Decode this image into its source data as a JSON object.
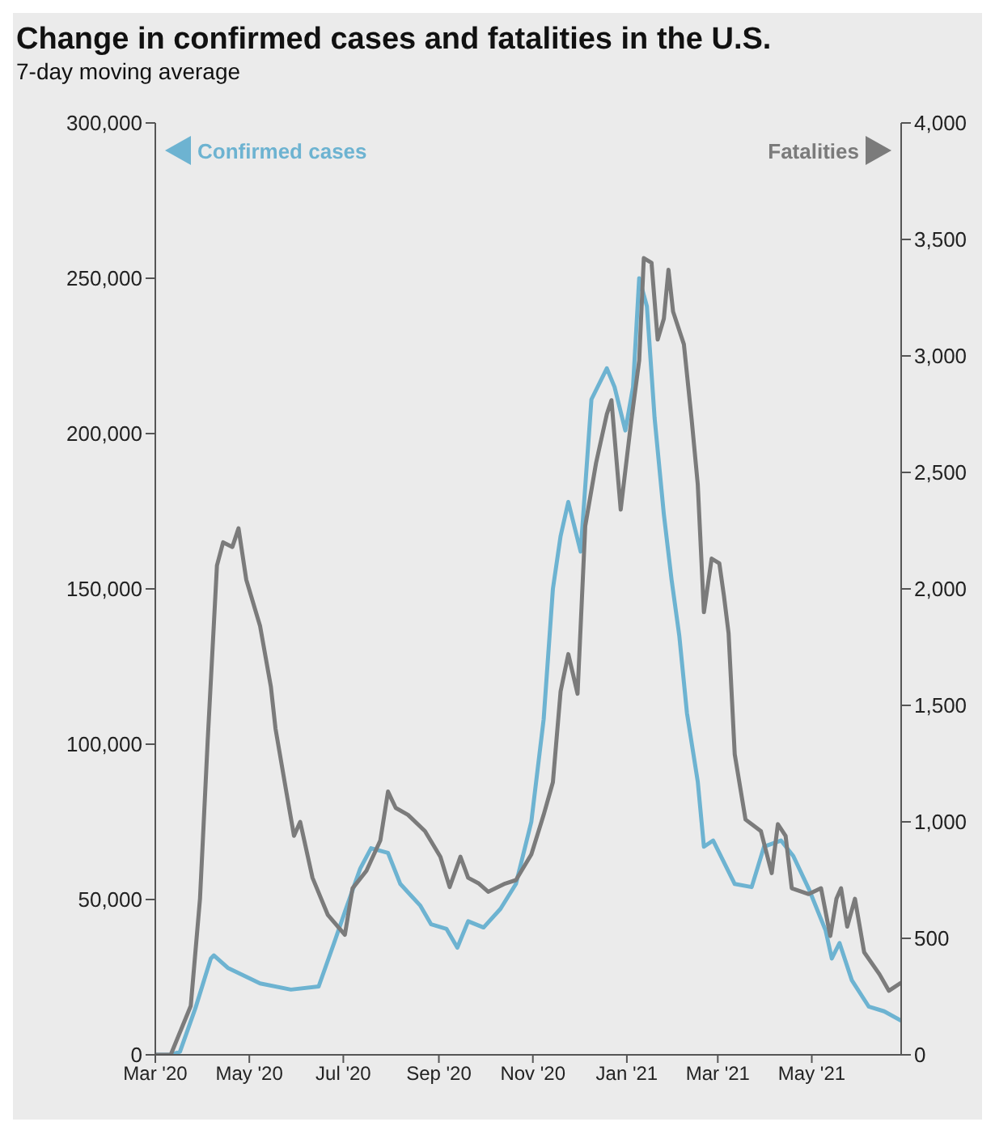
{
  "chart_data": {
    "type": "line",
    "title": "Change in confirmed cases and fatalities in the U.S.",
    "subtitle": "7-day moving average",
    "xlim": [
      "2020-03-01",
      "2021-06-28"
    ],
    "xticks": [
      {
        "value": "2020-03-01",
        "label": "Mar '20"
      },
      {
        "value": "2020-05-01",
        "label": "May '20"
      },
      {
        "value": "2020-07-01",
        "label": "Jul '20"
      },
      {
        "value": "2020-09-01",
        "label": "Sep '20"
      },
      {
        "value": "2020-11-01",
        "label": "Nov '20"
      },
      {
        "value": "2021-01-01",
        "label": "Jan '21"
      },
      {
        "value": "2021-03-01",
        "label": "Mar '21"
      },
      {
        "value": "2021-05-01",
        "label": "May '21"
      }
    ],
    "ylim": [
      0,
      300000
    ],
    "yticks": [
      0,
      {
        "value": 50000,
        "label": "50,000"
      },
      {
        "value": 100000,
        "label": "100,000"
      },
      {
        "value": 150000,
        "label": "150,000"
      },
      {
        "value": 200000,
        "label": "200,000"
      },
      {
        "value": 250000,
        "label": "250,000"
      },
      {
        "value": 300000,
        "label": "300,000"
      }
    ],
    "y2lim": [
      0,
      4000
    ],
    "y2ticks": [
      0,
      500,
      {
        "value": 1000,
        "label": "1,000"
      },
      {
        "value": 1500,
        "label": "1,500"
      },
      {
        "value": 2000,
        "label": "2,000"
      },
      {
        "value": 2500,
        "label": "2,500"
      },
      {
        "value": 3000,
        "label": "3,000"
      },
      {
        "value": 3500,
        "label": "3,500"
      },
      {
        "value": 4000,
        "label": "4,000"
      }
    ],
    "grid": false,
    "legend": "top",
    "marker": "none",
    "line_style": "solid",
    "series": [
      {
        "name": "Confirmed cases",
        "color": "#6db3d1",
        "x": [
          "2020-03-01",
          "2020-03-11",
          "2020-03-17",
          "2020-03-27",
          "2020-04-06",
          "2020-04-08",
          "2020-04-17",
          "2020-05-08",
          "2020-05-28",
          "2020-06-15",
          "2020-06-25",
          "2020-07-02",
          "2020-07-12",
          "2020-07-19",
          "2020-07-30",
          "2020-08-07",
          "2020-08-20",
          "2020-08-27",
          "2020-09-06",
          "2020-09-13",
          "2020-09-20",
          "2020-09-30",
          "2020-10-11",
          "2020-10-21",
          "2020-10-31",
          "2020-11-08",
          "2020-11-14",
          "2020-11-19",
          "2020-11-24",
          "2020-12-02",
          "2020-12-09",
          "2020-12-19",
          "2020-12-24",
          "2020-12-31",
          "2021-01-05",
          "2021-01-09",
          "2021-01-14",
          "2021-01-19",
          "2021-01-25",
          "2021-01-30",
          "2021-02-04",
          "2021-02-09",
          "2021-02-16",
          "2021-02-20",
          "2021-02-26",
          "2021-03-12",
          "2021-03-23",
          "2021-03-31",
          "2021-04-11",
          "2021-04-19",
          "2021-04-29",
          "2021-05-10",
          "2021-05-14",
          "2021-05-19",
          "2021-05-27",
          "2021-06-07",
          "2021-06-17",
          "2021-06-28"
        ],
        "values": [
          0,
          0,
          1000,
          15000,
          31000,
          32000,
          28000,
          23000,
          21000,
          22000,
          36000,
          46000,
          60000,
          66500,
          65000,
          55000,
          48000,
          42000,
          40500,
          34500,
          43000,
          41000,
          47000,
          55000,
          75000,
          108000,
          150000,
          167000,
          178000,
          162000,
          211000,
          221000,
          215000,
          201000,
          215000,
          250000,
          241000,
          205000,
          174000,
          153000,
          135000,
          110000,
          88000,
          67000,
          69000,
          55000,
          54000,
          67000,
          69000,
          64000,
          53500,
          40000,
          31000,
          36000,
          24000,
          15500,
          14000,
          11000
        ]
      },
      {
        "name": "Fatalities",
        "color": "#7b7b7b",
        "axis": "y2",
        "x": [
          "2020-03-01",
          "2020-03-11",
          "2020-03-24",
          "2020-03-30",
          "2020-04-04",
          "2020-04-10",
          "2020-04-14",
          "2020-04-20",
          "2020-04-24",
          "2020-04-29",
          "2020-05-08",
          "2020-05-15",
          "2020-05-18",
          "2020-05-25",
          "2020-05-30",
          "2020-06-03",
          "2020-06-11",
          "2020-06-21",
          "2020-07-02",
          "2020-07-07",
          "2020-07-16",
          "2020-07-25",
          "2020-07-30",
          "2020-08-04",
          "2020-08-12",
          "2020-08-23",
          "2020-09-02",
          "2020-09-08",
          "2020-09-15",
          "2020-09-20",
          "2020-09-27",
          "2020-10-03",
          "2020-10-14",
          "2020-10-21",
          "2020-10-31",
          "2020-11-08",
          "2020-11-14",
          "2020-11-19",
          "2020-11-24",
          "2020-11-30",
          "2020-12-05",
          "2020-12-12",
          "2020-12-19",
          "2020-12-22",
          "2020-12-28",
          "2021-01-04",
          "2021-01-09",
          "2021-01-12",
          "2021-01-17",
          "2021-01-21",
          "2021-01-25",
          "2021-01-28",
          "2021-01-31",
          "2021-02-07",
          "2021-02-12",
          "2021-02-16",
          "2021-02-20",
          "2021-02-25",
          "2021-03-02",
          "2021-03-05",
          "2021-03-08",
          "2021-03-12",
          "2021-03-19",
          "2021-03-29",
          "2021-04-05",
          "2021-04-09",
          "2021-04-14",
          "2021-04-18",
          "2021-04-29",
          "2021-05-07",
          "2021-05-13",
          "2021-05-17",
          "2021-05-20",
          "2021-05-24",
          "2021-05-29",
          "2021-06-04",
          "2021-06-14",
          "2021-06-20",
          "2021-06-28"
        ],
        "values": [
          0,
          0,
          210,
          670,
          1350,
          2100,
          2200,
          2180,
          2260,
          2040,
          1840,
          1580,
          1400,
          1130,
          940,
          1000,
          760,
          600,
          515,
          715,
          790,
          920,
          1130,
          1060,
          1030,
          960,
          850,
          720,
          850,
          760,
          735,
          700,
          735,
          750,
          860,
          1030,
          1170,
          1560,
          1720,
          1550,
          2270,
          2540,
          2750,
          2810,
          2340,
          2730,
          2980,
          3420,
          3400,
          3070,
          3160,
          3370,
          3190,
          3050,
          2730,
          2450,
          1900,
          2130,
          2110,
          1970,
          1810,
          1290,
          1010,
          960,
          780,
          990,
          940,
          715,
          690,
          715,
          510,
          670,
          715,
          550,
          670,
          440,
          345,
          275,
          310
        ]
      }
    ]
  }
}
